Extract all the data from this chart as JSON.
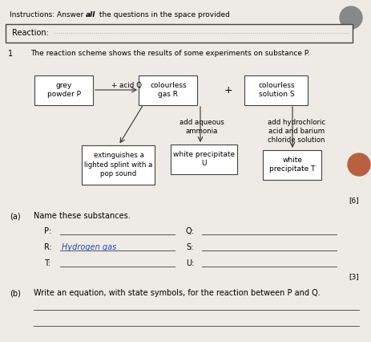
{
  "bg_color": "#eeebe6",
  "instruction_prefix": "Instructions: Answer ",
  "instruction_bold": "all",
  "instruction_suffix": " the questions in the space provided",
  "reaction_label": "Reaction:",
  "q_number": "1",
  "q_text": "The reaction scheme shows the results of some experiments on substance P.",
  "add_acid_Q": "+ acid Q",
  "plus_sign": "+",
  "add_aqueous": "add aqueous\nammonia",
  "add_hcl": "add hydrochloric\nacid and barium\nchloride solution",
  "marks_1": "[6]",
  "marks_2": "[3]",
  "part_a_label": "(a)",
  "part_a_text": "Name these substances.",
  "part_b_label": "(b)",
  "part_b_text": "Write an equation, with state symbols, for the reaction between P and Q.",
  "left_labels": [
    "P:",
    "R:",
    "T:"
  ],
  "right_labels": [
    "Q:",
    "S:",
    "U:"
  ],
  "r_answer": "Hydrogen gas",
  "box_grey_powder": "grey\npowder P",
  "box_gas_R": "colourless\ngas R",
  "box_solution_S": "colourless\nsolution S",
  "box_extinguish": "extinguishes a\nlighted splint with a\npop sound",
  "box_white_ppt_U": "white precipitate\nU",
  "box_white_ppt_T": "white\nprecipitate T",
  "circle1_color": "#888888",
  "circle2_color": "#b86040"
}
